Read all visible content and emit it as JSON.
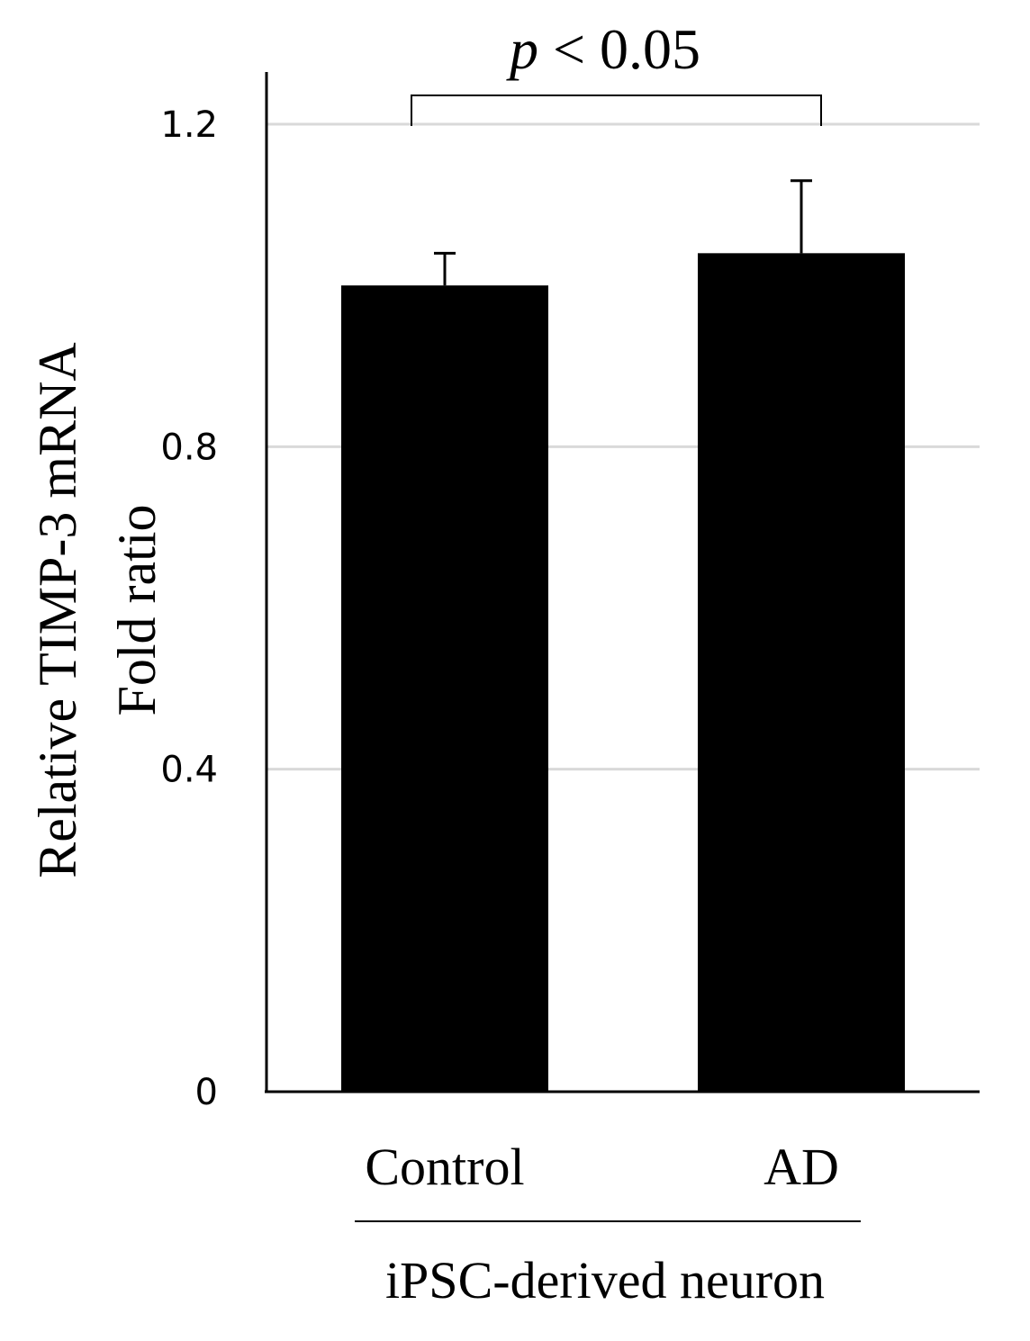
{
  "chart_data": {
    "type": "bar",
    "categories": [
      "Control",
      "AD"
    ],
    "values": [
      1.0,
      1.04
    ],
    "errors": [
      0.04,
      0.09
    ],
    "ylabel_line1": "Relative TIMP-3 mRNA",
    "ylabel_line2": "Fold ratio",
    "xgroup_label": "iPSC-derived neuron",
    "ylim": [
      0,
      1.2
    ],
    "yticks": [
      0,
      0.4,
      0.8,
      1.2
    ],
    "ytick_labels": [
      "0",
      "0.4",
      "0.8",
      "1.2"
    ],
    "grid": "horizontal",
    "significance": {
      "p_symbol": "p",
      "rest": " < 0.05"
    },
    "bar_color": "#000000",
    "grid_color": "#d9d9d9"
  }
}
